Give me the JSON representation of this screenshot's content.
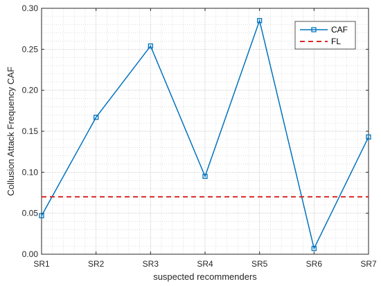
{
  "chart_data": {
    "type": "line",
    "xlabel": "suspected recommenders",
    "ylabel": "Collusion Attack Frequency CAF",
    "categories": [
      "SR1",
      "SR2",
      "SR3",
      "SR4",
      "SR5",
      "SR6",
      "SR7"
    ],
    "ylim": [
      0,
      0.3
    ],
    "yticks": [
      "0.00",
      "0.05",
      "0.10",
      "0.15",
      "0.20",
      "0.25",
      "0.30"
    ],
    "grid": true,
    "minor_grid": true,
    "legend_position": "top-right",
    "series": [
      {
        "name": "CAF",
        "values": [
          0.047,
          0.167,
          0.254,
          0.095,
          0.285,
          0.007,
          0.143
        ],
        "color": "#0072BD",
        "style": "solid",
        "marker": "square"
      },
      {
        "name": "FL",
        "values": [
          0.07,
          0.07,
          0.07,
          0.07,
          0.07,
          0.07,
          0.07
        ],
        "color": "#D62728",
        "style": "dashed",
        "marker": "none"
      }
    ]
  }
}
